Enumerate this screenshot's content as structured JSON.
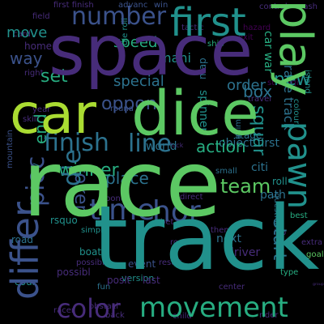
{
  "palette": {
    "background": "#000000",
    "dark_purple": "#440154",
    "purple": "#472c7a",
    "blue": "#3b528b",
    "teal_blue": "#2c728e",
    "teal": "#21918c",
    "green": "#27ad81",
    "light_green": "#5cc863",
    "yellow_green": "#aadc32"
  },
  "words": [
    "race",
    "track",
    "space",
    "car",
    "dice",
    "first",
    "play",
    "pawn",
    "differ",
    "finish",
    "line",
    "color",
    "movement",
    "time",
    "hor",
    "number",
    "way",
    "new",
    "end",
    "winner",
    "team",
    "token",
    "action",
    "place",
    "piec",
    "special",
    "box",
    "oppon",
    "order",
    "speed",
    "move",
    "set",
    "object first",
    "start",
    "squar",
    "die",
    "world",
    "citi",
    "next",
    "path",
    "driver",
    "posit",
    "event",
    "goal",
    "mani",
    "home",
    "stage",
    "spinner",
    "cour",
    "road",
    "race track",
    "die roll",
    "car war",
    "skill",
    "year",
    "right",
    "map",
    "money",
    "version",
    "simpl",
    "last",
    "fun",
    "roll",
    "lap",
    "best",
    "type",
    "colour",
    "island",
    "strategi",
    "question",
    "mountain",
    "field",
    "card",
    "ship",
    "advanc",
    "win",
    "first finish",
    "nash",
    "anim",
    "travel",
    "luck",
    "small",
    "tactic",
    "round",
    "bet",
    "center",
    "back",
    "child",
    "racer",
    "obstacl",
    "boat",
    "rsquo",
    "possibl",
    "bonus",
    "direct",
    "extra",
    "group",
    "rider",
    "rout",
    "theme",
    "result",
    "possibl",
    "control",
    "exit",
    "hazard"
  ]
}
